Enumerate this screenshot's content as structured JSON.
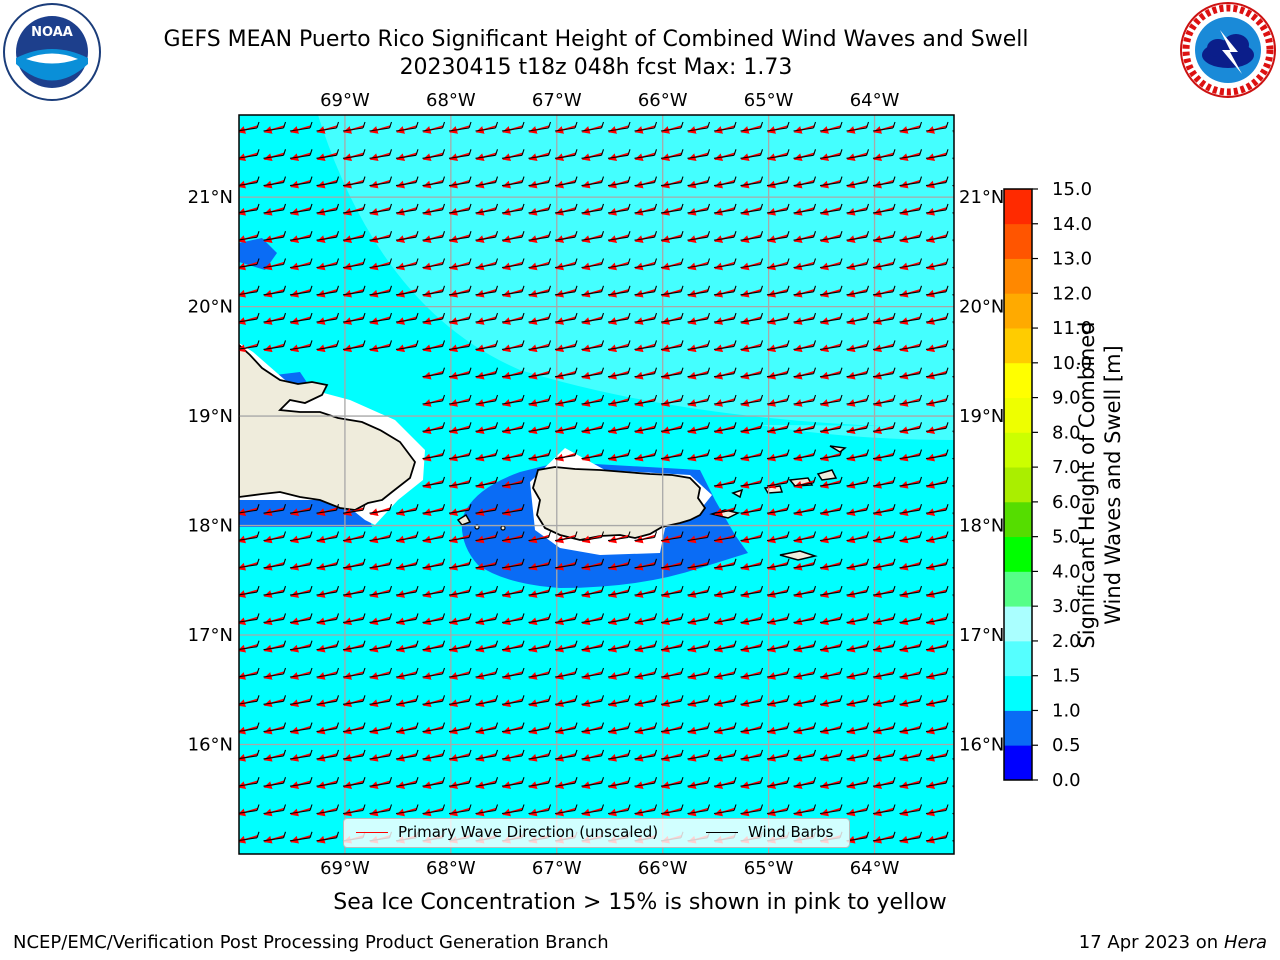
{
  "header": {
    "title_line1": "GEFS MEAN Puerto Rico Significant Height of Combined Wind Waves and Swell",
    "title_line2": "20230415 t18z 048h fcst   Max: 1.73"
  },
  "logos": {
    "left": {
      "icon": "noaa-logo",
      "text": "NOAA"
    },
    "right": {
      "icon": "nws-logo",
      "ring_text": "NATIONAL WEATHER SERVICE"
    }
  },
  "map": {
    "lon_ticks": [
      "69°W",
      "68°W",
      "67°W",
      "66°W",
      "65°W",
      "64°W"
    ],
    "lat_ticks": [
      "21°N",
      "20°N",
      "19°N",
      "18°N",
      "17°N",
      "16°N"
    ],
    "lon_range": [
      -70.0,
      -63.25
    ],
    "lat_range": [
      15.0,
      21.75
    ],
    "land_color": "#efecdc",
    "sea_color": "#00ffff",
    "legend": {
      "wave_dir_label": "Primary Wave Direction (unscaled)",
      "wave_dir_color": "#ff0000",
      "wind_barb_label": "Wind Barbs",
      "wind_barb_color": "#000000"
    }
  },
  "colorbar": {
    "title": "Significant Height of Combined\nWind Waves and Swell [m]",
    "ticks": [
      "15.0",
      "14.0",
      "13.0",
      "12.0",
      "11.0",
      "10.0",
      "9.0",
      "8.0",
      "7.0",
      "6.0",
      "5.0",
      "4.0",
      "3.0",
      "2.0",
      "1.5",
      "1.0",
      "0.5",
      "0.0"
    ],
    "colors_bottom_to_top": [
      "#0000ff",
      "#0a6cf5",
      "#00ffff",
      "#55ffff",
      "#aaffff",
      "#55ff88",
      "#00ff00",
      "#55dd00",
      "#aaee00",
      "#ccff00",
      "#eeff00",
      "#ffff00",
      "#ffcc00",
      "#ffaa00",
      "#ff8800",
      "#ff5500",
      "#ff2a00"
    ]
  },
  "footer": {
    "note": "Sea Ice Concentration > 15% is shown in pink to yellow",
    "credit": "NCEP/EMC/Verification Post Processing Product Generation Branch",
    "date": "17 Apr 2023 on",
    "machine": "Hera"
  }
}
